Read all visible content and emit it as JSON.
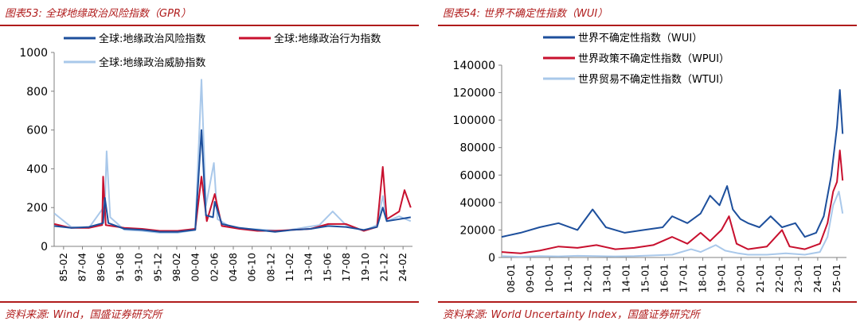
{
  "colors": {
    "wine": "#b01c1c",
    "navy": "#1d4f9c",
    "red": "#c8102e",
    "lightblue": "#a9c8ea"
  },
  "chart_data": [
    {
      "type": "line",
      "figure_title": "图表53:  全球地缘政治风险指数（GPR）",
      "source": "资料来源:  Wind，国盛证券研究所",
      "x_ticks": [
        "85-02",
        "87-04",
        "89-06",
        "91-08",
        "93-10",
        "95-12",
        "98-02",
        "00-04",
        "02-06",
        "04-08",
        "06-10",
        "08-12",
        "11-02",
        "13-04",
        "15-06",
        "17-08",
        "19-10",
        "21-12",
        "24-02"
      ],
      "x_range": [
        1985.08,
        2025.5
      ],
      "ylim": [
        0,
        1000
      ],
      "y_ticks": [
        0,
        200,
        400,
        600,
        800,
        1000
      ],
      "legend_position": "top",
      "series": [
        {
          "name": "全球:地缘政治风险指数",
          "color": "#1d4f9c",
          "points": [
            [
              1985.1,
              105
            ],
            [
              1987.0,
              95
            ],
            [
              1989.0,
              100
            ],
            [
              1990.6,
              120
            ],
            [
              1990.8,
              250
            ],
            [
              1991.2,
              120
            ],
            [
              1993.0,
              90
            ],
            [
              1995.0,
              85
            ],
            [
              1997.0,
              75
            ],
            [
              1999.0,
              75
            ],
            [
              2001.0,
              85
            ],
            [
              2001.7,
              600
            ],
            [
              2002.2,
              160
            ],
            [
              2003.0,
              150
            ],
            [
              2003.2,
              230
            ],
            [
              2004.0,
              115
            ],
            [
              2006.0,
              95
            ],
            [
              2008.0,
              85
            ],
            [
              2010.0,
              75
            ],
            [
              2012.0,
              85
            ],
            [
              2014.0,
              90
            ],
            [
              2016.0,
              105
            ],
            [
              2018.0,
              100
            ],
            [
              2020.0,
              85
            ],
            [
              2021.5,
              100
            ],
            [
              2022.15,
              200
            ],
            [
              2022.6,
              130
            ],
            [
              2024.0,
              140
            ],
            [
              2025.3,
              150
            ]
          ]
        },
        {
          "name": "全球:地缘政治行为指数",
          "color": "#c8102e",
          "points": [
            [
              1985.1,
              115
            ],
            [
              1987.0,
              95
            ],
            [
              1989.0,
              95
            ],
            [
              1990.5,
              110
            ],
            [
              1990.6,
              360
            ],
            [
              1990.9,
              110
            ],
            [
              1993.0,
              95
            ],
            [
              1995.0,
              90
            ],
            [
              1997.0,
              80
            ],
            [
              1999.0,
              80
            ],
            [
              2001.0,
              90
            ],
            [
              2001.7,
              360
            ],
            [
              2002.3,
              130
            ],
            [
              2003.2,
              270
            ],
            [
              2004.0,
              105
            ],
            [
              2006.0,
              90
            ],
            [
              2008.0,
              80
            ],
            [
              2010.0,
              80
            ],
            [
              2012.0,
              85
            ],
            [
              2014.0,
              90
            ],
            [
              2016.0,
              115
            ],
            [
              2018.0,
              115
            ],
            [
              2020.0,
              80
            ],
            [
              2021.5,
              100
            ],
            [
              2022.15,
              410
            ],
            [
              2022.6,
              140
            ],
            [
              2024.0,
              180
            ],
            [
              2024.6,
              290
            ],
            [
              2025.3,
              200
            ]
          ]
        },
        {
          "name": "全球:地缘政治威胁指数",
          "color": "#a9c8ea",
          "points": [
            [
              1985.1,
              170
            ],
            [
              1987.0,
              100
            ],
            [
              1989.0,
              95
            ],
            [
              1990.8,
              210
            ],
            [
              1991.0,
              490
            ],
            [
              1991.4,
              150
            ],
            [
              1993.0,
              85
            ],
            [
              1995.0,
              80
            ],
            [
              1997.0,
              70
            ],
            [
              1999.0,
              70
            ],
            [
              2001.0,
              85
            ],
            [
              2001.7,
              860
            ],
            [
              2002.2,
              210
            ],
            [
              2003.1,
              430
            ],
            [
              2003.5,
              140
            ],
            [
              2005.0,
              100
            ],
            [
              2007.0,
              90
            ],
            [
              2009.0,
              85
            ],
            [
              2011.0,
              80
            ],
            [
              2013.0,
              95
            ],
            [
              2015.0,
              110
            ],
            [
              2016.5,
              180
            ],
            [
              2018.0,
              110
            ],
            [
              2020.0,
              80
            ],
            [
              2021.5,
              110
            ],
            [
              2022.15,
              260
            ],
            [
              2022.6,
              130
            ],
            [
              2024.0,
              155
            ],
            [
              2025.3,
              130
            ]
          ]
        }
      ]
    },
    {
      "type": "line",
      "figure_title": "图表54:  世界不确定性指数（WUI）",
      "source": "资料来源:  World Uncertainty Index，国盛证券研究所",
      "x_ticks": [
        "08-01",
        "09-01",
        "10-01",
        "11-01",
        "12-01",
        "13-01",
        "14-01",
        "15-01",
        "16-01",
        "17-01",
        "18-01",
        "19-01",
        "20-01",
        "21-01",
        "22-01",
        "23-01",
        "24-01",
        "25-01"
      ],
      "x_range": [
        2008.0,
        2026.2
      ],
      "ylim": [
        0,
        140000
      ],
      "y_ticks": [
        0,
        20000,
        40000,
        60000,
        80000,
        100000,
        120000,
        140000
      ],
      "legend_position": "top",
      "series": [
        {
          "name": "世界不确定性指数（WUI）",
          "color": "#1d4f9c",
          "points": [
            [
              2008.0,
              15000
            ],
            [
              2009.0,
              18000
            ],
            [
              2010.0,
              22000
            ],
            [
              2011.0,
              25000
            ],
            [
              2012.0,
              20000
            ],
            [
              2012.8,
              35000
            ],
            [
              2013.5,
              22000
            ],
            [
              2014.5,
              18000
            ],
            [
              2015.5,
              20000
            ],
            [
              2016.5,
              22000
            ],
            [
              2017.0,
              30000
            ],
            [
              2017.8,
              25000
            ],
            [
              2018.5,
              32000
            ],
            [
              2019.0,
              45000
            ],
            [
              2019.5,
              38000
            ],
            [
              2019.9,
              52000
            ],
            [
              2020.2,
              35000
            ],
            [
              2020.6,
              28000
            ],
            [
              2021.0,
              25000
            ],
            [
              2021.6,
              22000
            ],
            [
              2022.2,
              30000
            ],
            [
              2022.8,
              22000
            ],
            [
              2023.5,
              25000
            ],
            [
              2024.0,
              15000
            ],
            [
              2024.6,
              18000
            ],
            [
              2025.0,
              30000
            ],
            [
              2025.4,
              60000
            ],
            [
              2025.7,
              95000
            ],
            [
              2025.85,
              122000
            ],
            [
              2026.0,
              90000
            ]
          ]
        },
        {
          "name": "世界政策不确定性指数（WPUI）",
          "color": "#c8102e",
          "points": [
            [
              2008.0,
              4000
            ],
            [
              2009.0,
              3000
            ],
            [
              2010.0,
              5000
            ],
            [
              2011.0,
              8000
            ],
            [
              2012.0,
              7000
            ],
            [
              2013.0,
              9000
            ],
            [
              2014.0,
              6000
            ],
            [
              2015.0,
              7000
            ],
            [
              2016.0,
              9000
            ],
            [
              2017.0,
              15000
            ],
            [
              2017.8,
              10000
            ],
            [
              2018.5,
              18000
            ],
            [
              2019.0,
              12000
            ],
            [
              2019.6,
              20000
            ],
            [
              2020.0,
              30000
            ],
            [
              2020.4,
              10000
            ],
            [
              2021.0,
              6000
            ],
            [
              2022.0,
              8000
            ],
            [
              2022.8,
              20000
            ],
            [
              2023.2,
              8000
            ],
            [
              2024.0,
              6000
            ],
            [
              2024.8,
              10000
            ],
            [
              2025.2,
              25000
            ],
            [
              2025.5,
              48000
            ],
            [
              2025.7,
              55000
            ],
            [
              2025.85,
              78000
            ],
            [
              2026.0,
              56000
            ]
          ]
        },
        {
          "name": "世界贸易不确定性指数（WTUI）",
          "color": "#a9c8ea",
          "points": [
            [
              2008.0,
              1000
            ],
            [
              2009.0,
              500
            ],
            [
              2010.0,
              1000
            ],
            [
              2011.0,
              800
            ],
            [
              2012.0,
              1200
            ],
            [
              2013.0,
              1000
            ],
            [
              2014.0,
              800
            ],
            [
              2015.0,
              1000
            ],
            [
              2016.0,
              1500
            ],
            [
              2017.0,
              2000
            ],
            [
              2018.0,
              6000
            ],
            [
              2018.5,
              4000
            ],
            [
              2019.3,
              9000
            ],
            [
              2019.8,
              5000
            ],
            [
              2020.5,
              3000
            ],
            [
              2021.0,
              2000
            ],
            [
              2022.0,
              2000
            ],
            [
              2023.0,
              3000
            ],
            [
              2024.0,
              2000
            ],
            [
              2024.8,
              4000
            ],
            [
              2025.2,
              15000
            ],
            [
              2025.5,
              38000
            ],
            [
              2025.8,
              48000
            ],
            [
              2026.0,
              32000
            ]
          ]
        }
      ]
    }
  ]
}
